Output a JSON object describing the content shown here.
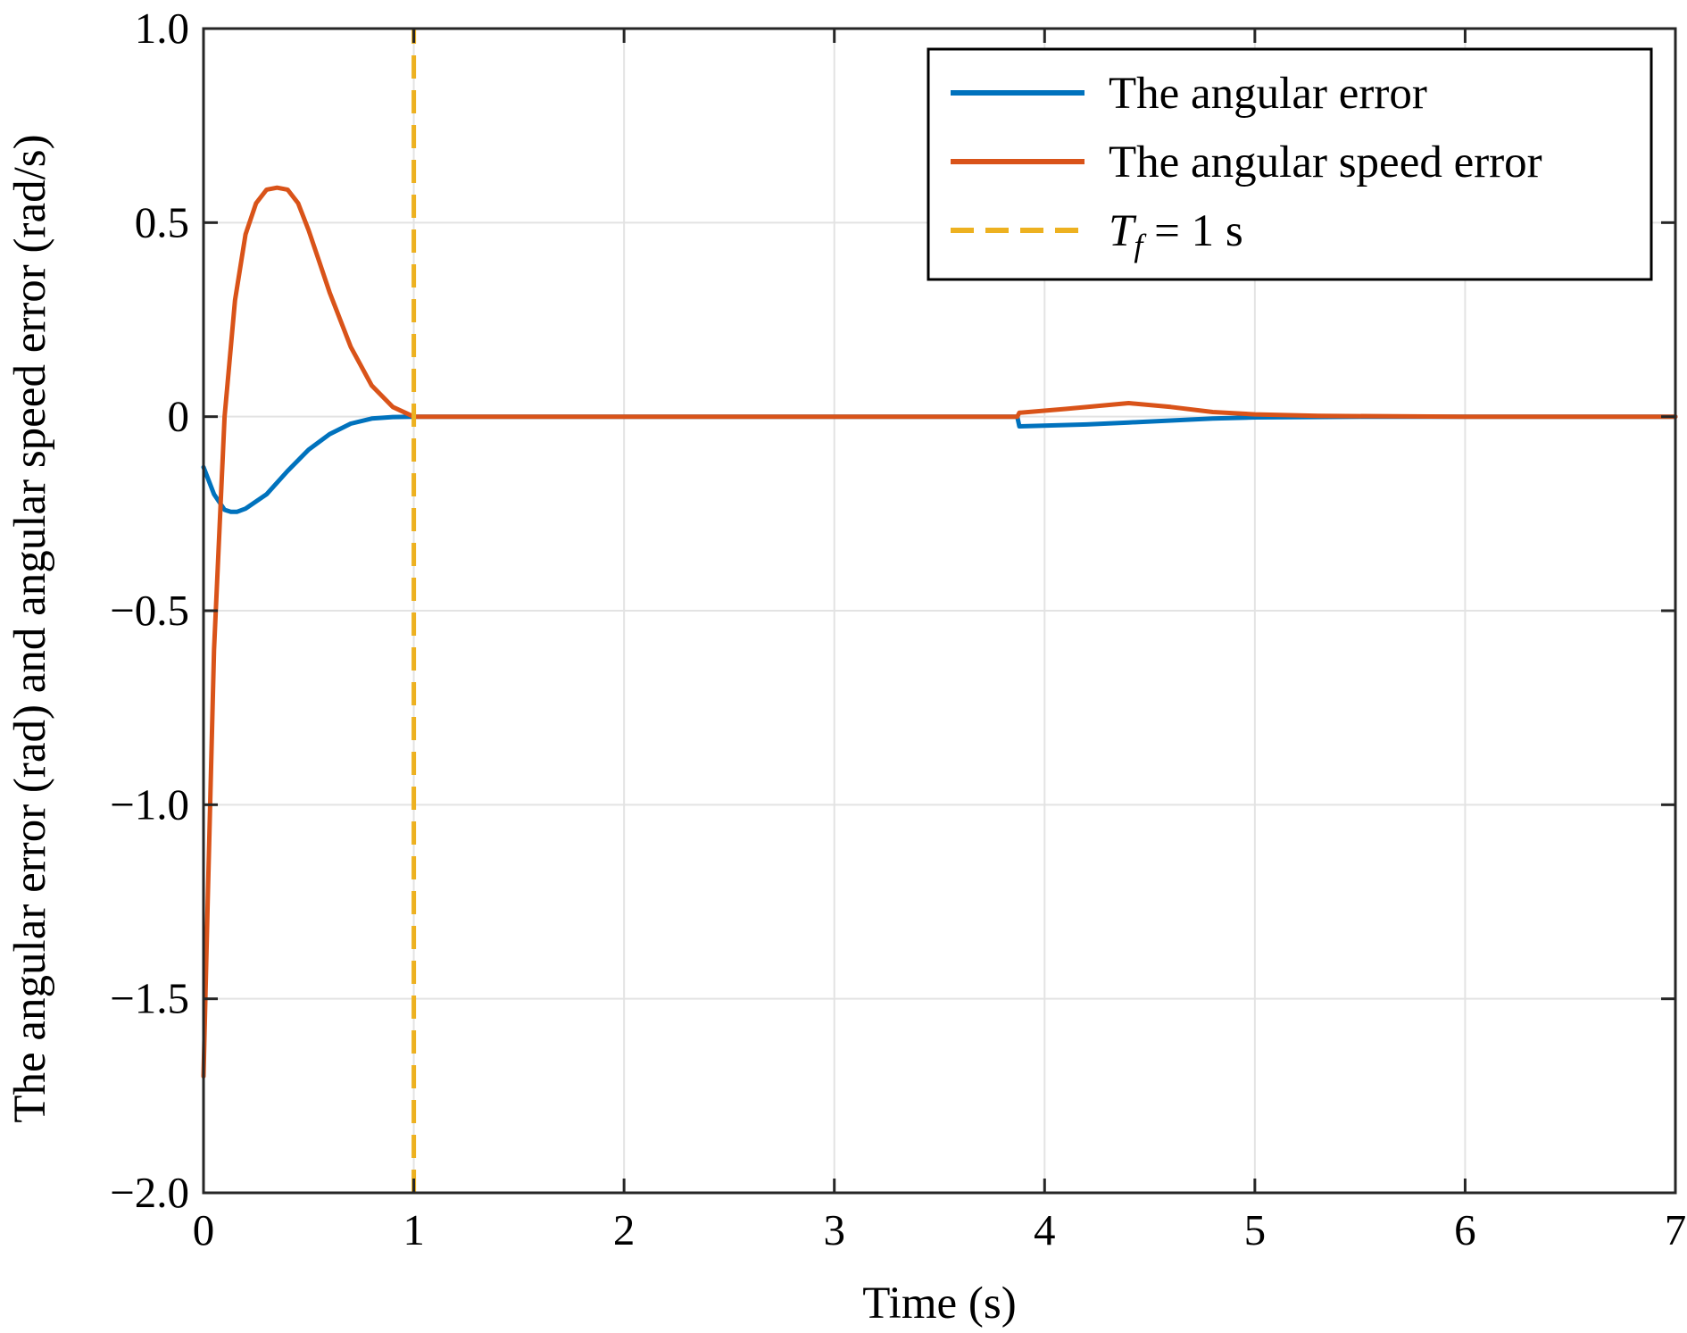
{
  "chart_data": {
    "type": "line",
    "xlabel": "Time (s)",
    "ylabel": "The angular error (rad) and angular speed error (rad/s)",
    "xlim": [
      0,
      7
    ],
    "ylim": [
      -2.0,
      1.0
    ],
    "x_ticks": [
      0,
      1,
      2,
      3,
      4,
      5,
      6,
      7
    ],
    "x_tick_labels": [
      "0",
      "1",
      "2",
      "3",
      "4",
      "5",
      "6",
      "7"
    ],
    "y_ticks": [
      -2.0,
      -1.5,
      -1.0,
      -0.5,
      0,
      0.5,
      1.0
    ],
    "y_tick_labels": [
      "−2.0",
      "−1.5",
      "−1.0",
      "−0.5",
      "0",
      "0.5",
      "1.0"
    ],
    "grid": true,
    "legend_position": "top-right",
    "series": [
      {
        "name": "The angular error",
        "color": "#0072BD",
        "style": "solid",
        "x": [
          0,
          0.05,
          0.1,
          0.13,
          0.16,
          0.2,
          0.3,
          0.4,
          0.5,
          0.6,
          0.7,
          0.8,
          0.9,
          1.0,
          2.0,
          3.0,
          3.87,
          3.88,
          4.2,
          4.4,
          4.6,
          4.8,
          5.0,
          5.5,
          6.0,
          7.0
        ],
        "y": [
          -0.13,
          -0.2,
          -0.24,
          -0.245,
          -0.245,
          -0.237,
          -0.2,
          -0.14,
          -0.085,
          -0.045,
          -0.018,
          -0.005,
          -0.001,
          0,
          0,
          0,
          0,
          -0.025,
          -0.02,
          -0.015,
          -0.01,
          -0.005,
          -0.002,
          0,
          0,
          0
        ]
      },
      {
        "name": "The angular speed error",
        "color": "#D95319",
        "style": "solid",
        "x": [
          0,
          0.02,
          0.05,
          0.1,
          0.15,
          0.2,
          0.25,
          0.3,
          0.35,
          0.4,
          0.45,
          0.5,
          0.55,
          0.6,
          0.7,
          0.8,
          0.9,
          1.0,
          2.0,
          3.0,
          3.87,
          3.88,
          4.1,
          4.4,
          4.6,
          4.8,
          5.0,
          5.3,
          6.0,
          7.0
        ],
        "y": [
          -1.7,
          -1.25,
          -0.6,
          0.0,
          0.3,
          0.47,
          0.55,
          0.585,
          0.59,
          0.585,
          0.55,
          0.48,
          0.4,
          0.32,
          0.18,
          0.08,
          0.025,
          0,
          0,
          0,
          0,
          0.01,
          0.02,
          0.035,
          0.025,
          0.012,
          0.006,
          0.002,
          0,
          0
        ]
      },
      {
        "name": "T_f = 1 s",
        "color": "#EDB120",
        "style": "dashed",
        "x": [
          1,
          1
        ],
        "y": [
          -2.0,
          1.0
        ]
      }
    ],
    "legend": {
      "entries": [
        {
          "text": "The angular error",
          "color": "#0072BD",
          "style": "solid"
        },
        {
          "text": "The angular speed error",
          "color": "#D95319",
          "style": "solid"
        },
        {
          "text_main": "T",
          "text_sub": "f",
          "text_rest": " = 1 s",
          "color": "#EDB120",
          "style": "dashed"
        }
      ]
    }
  }
}
